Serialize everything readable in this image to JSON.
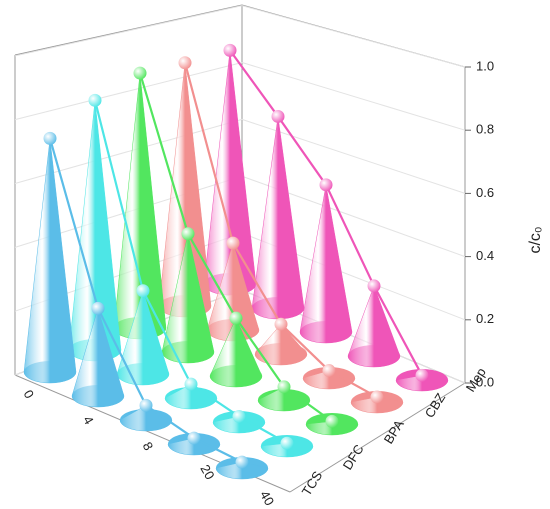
{
  "chart_data": {
    "type": "cone3d",
    "categories": [
      "0",
      "4",
      "8",
      "20",
      "40"
    ],
    "series": [
      {
        "name": "TCS",
        "color": "#5bbde8",
        "values": [
          0.8,
          0.3,
          0.05,
          0.02,
          0.02
        ]
      },
      {
        "name": "DFC",
        "color": "#4de6e6",
        "values": [
          0.9,
          0.3,
          0.05,
          0.02,
          0.01
        ]
      },
      {
        "name": "BPA",
        "color": "#52e65f",
        "values": [
          0.97,
          0.45,
          0.22,
          0.05,
          0.01
        ]
      },
      {
        "name": "CBZ",
        "color": "#f28f8f",
        "values": [
          0.98,
          0.35,
          0.12,
          0.03,
          0.02
        ]
      },
      {
        "name": "Mep",
        "color": "#ef55b8",
        "values": [
          1.0,
          0.82,
          0.63,
          0.3,
          0.02
        ]
      }
    ],
    "zlabel": "c/c₀",
    "zlim": [
      0,
      1
    ],
    "zticks": [
      {
        "value": 0,
        "label": "0.0"
      },
      0.2,
      0.4,
      0.6,
      0.8,
      {
        "value": 1,
        "label": "1.0"
      }
    ],
    "grid": true
  }
}
